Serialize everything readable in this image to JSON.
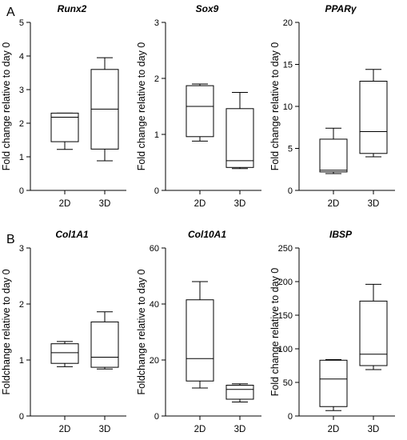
{
  "panel_labels": [
    "A",
    "B"
  ],
  "chart_data": [
    {
      "type": "box",
      "title": "Runx2",
      "ylabel": "Fold change relative to day 0",
      "ylim": [
        0,
        5
      ],
      "yticks": [
        0,
        1,
        2,
        3,
        4,
        5
      ],
      "categories": [
        "2D",
        "3D"
      ],
      "boxes": [
        {
          "category": "2D",
          "min": 1.22,
          "q1": 1.45,
          "median": 2.18,
          "q3": 2.3,
          "max": 2.3
        },
        {
          "category": "3D",
          "min": 0.88,
          "q1": 1.23,
          "median": 2.42,
          "q3": 3.6,
          "max": 3.95
        }
      ]
    },
    {
      "type": "box",
      "title": "Sox9",
      "ylabel": "Fold change relative to day 0",
      "ylim": [
        0,
        3
      ],
      "yticks": [
        0,
        1,
        2,
        3
      ],
      "categories": [
        "2D",
        "3D"
      ],
      "boxes": [
        {
          "category": "2D",
          "min": 0.88,
          "q1": 0.96,
          "median": 1.5,
          "q3": 1.87,
          "max": 1.9
        },
        {
          "category": "3D",
          "min": 0.39,
          "q1": 0.41,
          "median": 0.53,
          "q3": 1.46,
          "max": 1.75
        }
      ]
    },
    {
      "type": "box",
      "title": "PPARγ",
      "ylabel": "Fold change relative to day 0",
      "ylim": [
        0,
        20
      ],
      "yticks": [
        0,
        5,
        10,
        15,
        20
      ],
      "categories": [
        "2D",
        "3D"
      ],
      "boxes": [
        {
          "category": "2D",
          "min": 2.0,
          "q1": 2.2,
          "median": 2.4,
          "q3": 6.1,
          "max": 7.4
        },
        {
          "category": "3D",
          "min": 4.0,
          "q1": 4.4,
          "median": 7.0,
          "q3": 13.0,
          "max": 14.4
        }
      ]
    },
    {
      "type": "box",
      "title": "Col1A1",
      "ylabel": "Foldchange relative to day 0",
      "ylim": [
        0,
        3
      ],
      "yticks": [
        0,
        1,
        2,
        3
      ],
      "categories": [
        "2D",
        "3D"
      ],
      "boxes": [
        {
          "category": "2D",
          "min": 0.88,
          "q1": 0.94,
          "median": 1.13,
          "q3": 1.29,
          "max": 1.33
        },
        {
          "category": "3D",
          "min": 0.84,
          "q1": 0.87,
          "median": 1.05,
          "q3": 1.68,
          "max": 1.86
        }
      ]
    },
    {
      "type": "box",
      "title": "Col10A1",
      "ylabel": "Foldchange relative to day 0",
      "ylim": [
        0,
        60
      ],
      "yticks": [
        0,
        20,
        40,
        60
      ],
      "categories": [
        "2D",
        "3D"
      ],
      "boxes": [
        {
          "category": "2D",
          "min": 10.0,
          "q1": 12.5,
          "median": 20.5,
          "q3": 41.5,
          "max": 48.0
        },
        {
          "category": "3D",
          "min": 5.0,
          "q1": 6.0,
          "median": 9.5,
          "q3": 11.0,
          "max": 11.5
        }
      ]
    },
    {
      "type": "box",
      "title": "IBSP",
      "ylabel": "Fold change relative to day 0",
      "ylim": [
        0,
        250
      ],
      "yticks": [
        0,
        50,
        100,
        150,
        200,
        250
      ],
      "categories": [
        "2D",
        "3D"
      ],
      "boxes": [
        {
          "category": "2D",
          "min": 8,
          "q1": 14,
          "median": 55,
          "q3": 83,
          "max": 84
        },
        {
          "category": "3D",
          "min": 69,
          "q1": 75,
          "median": 92,
          "q3": 171,
          "max": 196
        }
      ]
    }
  ]
}
